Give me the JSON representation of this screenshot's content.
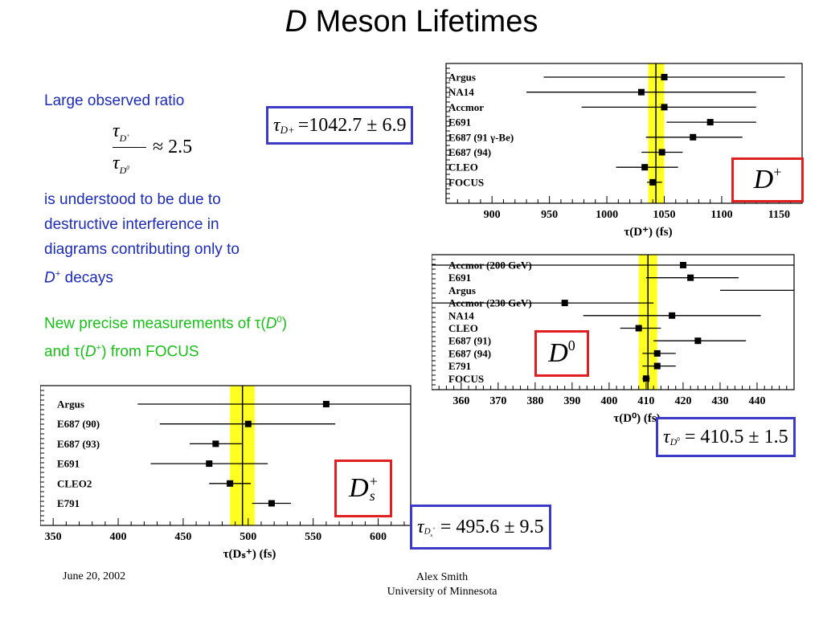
{
  "slide": {
    "title_italic": "D",
    "title_rest": "Meson Lifetimes",
    "footer_date": "June 20, 2002",
    "footer_author": "Alex Smith",
    "footer_affiliation": "University of Minnesota"
  },
  "text": {
    "ratio_heading": "Large observed ratio",
    "ratio_tau": "τ",
    "ratio_num_sub": "D",
    "ratio_num_sup": "+",
    "ratio_den_sub": "D",
    "ratio_den_sup": "0",
    "ratio_value": "≈ 2.5",
    "explain_1": "is understood to be due to",
    "explain_2": "destructive interference in",
    "explain_3": "diagrams contributing only to",
    "explain_4_italic": "D",
    "explain_4_sup": "+",
    "explain_4_rest": " decays",
    "new_1": "New precise measurements of τ(",
    "new_1_italic": "D",
    "new_1_sup": "0",
    "new_1_end": ")",
    "new_2": "and τ(",
    "new_2_italic": "D",
    "new_2_sup": "+",
    "new_2_end": ") from FOCUS"
  },
  "results": {
    "dplus": {
      "tau": "τ",
      "sub": "D+",
      "value": "=1042.7 ± 6.9",
      "label": "D",
      "label_sup": "+"
    },
    "d0": {
      "tau": "τ",
      "sub": "D",
      "sub_sup": "0",
      "value": "= 410.5 ± 1.5",
      "label": "D",
      "label_sup": "0"
    },
    "ds": {
      "tau": "τ",
      "sub": "D",
      "sub_sub": "s",
      "sub_sup": "+",
      "value": "= 495.6 ± 9.5",
      "label": "D",
      "label_sub": "s",
      "label_sup": "+"
    }
  },
  "colors": {
    "band": "#ffff22",
    "blue_text": "#1c2bb8",
    "green_text": "#18c018",
    "box_blue": "#3b3bc8",
    "box_red": "#e02020"
  },
  "chart_data": [
    {
      "type": "scatter",
      "id": "dplus",
      "xlabel": "τ(D⁺) (fs)",
      "xlim": [
        860,
        1170
      ],
      "xticks": [
        900,
        950,
        1000,
        1050,
        1100,
        1150
      ],
      "band": [
        1036,
        1050
      ],
      "line": 1042.7,
      "categories": [
        "Argus",
        "NA14",
        "Accmor",
        "E691",
        "E687 (91 γ-Be)",
        "E687 (94)",
        "CLEO",
        "FOCUS"
      ],
      "values": [
        1050,
        1030,
        1050,
        1090,
        1075,
        1048,
        1033,
        1040
      ],
      "err_lo": [
        945,
        930,
        978,
        1052,
        1034,
        1030,
        1008,
        1035
      ],
      "err_hi": [
        1155,
        1130,
        1130,
        1130,
        1118,
        1066,
        1062,
        1048
      ]
    },
    {
      "type": "scatter",
      "id": "d0",
      "xlabel": "τ(D⁰) (fs)",
      "xlim": [
        352,
        450
      ],
      "xticks": [
        360,
        370,
        380,
        390,
        400,
        410,
        420,
        430,
        440
      ],
      "band": [
        408,
        413
      ],
      "line": 410.5,
      "categories": [
        "Accmor (200 GeV)",
        "E691",
        "Argus",
        "Accmor (230 GeV)",
        "NA14",
        "CLEO",
        "E687 (91)",
        "E687 (94)",
        "E791",
        "FOCUS"
      ],
      "values": [
        420,
        422,
        450,
        388,
        417,
        408,
        424,
        413,
        413,
        410
      ],
      "err_lo": [
        352,
        410,
        430,
        352,
        393,
        403,
        412,
        409,
        409,
        409
      ],
      "err_hi": [
        450,
        435,
        450,
        412,
        441,
        414,
        437,
        418,
        418,
        411
      ]
    },
    {
      "type": "scatter",
      "id": "ds",
      "xlabel": "τ(Dₛ⁺) (fs)",
      "xlim": [
        340,
        625
      ],
      "xticks": [
        350,
        400,
        450,
        500,
        550,
        600
      ],
      "band": [
        486,
        505
      ],
      "line": 495.6,
      "categories": [
        "Argus",
        "E687 (90)",
        "E687 (93)",
        "E691",
        "CLEO2",
        "E791"
      ],
      "values": [
        560,
        500,
        475,
        470,
        486,
        518
      ],
      "err_lo": [
        415,
        432,
        455,
        425,
        470,
        503
      ],
      "err_hi": [
        625,
        567,
        495,
        515,
        502,
        533
      ]
    }
  ]
}
